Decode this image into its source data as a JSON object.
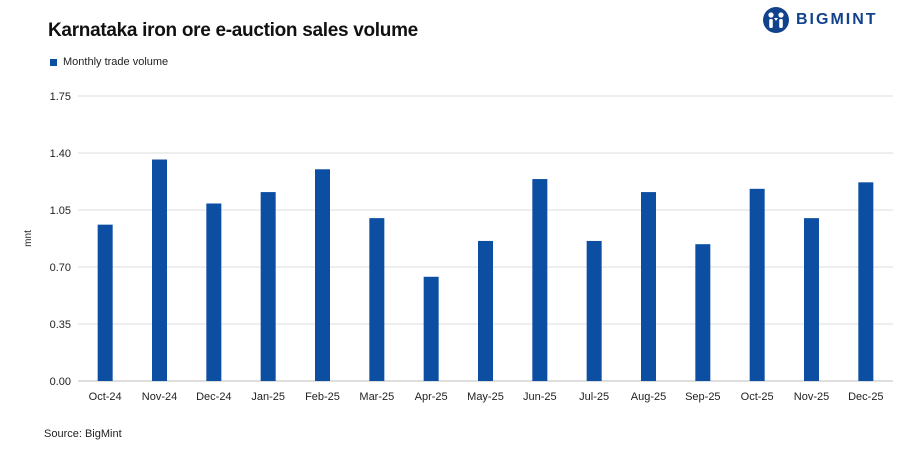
{
  "brand": {
    "name": "BIGMINT",
    "color": "#13428d",
    "icon": "bigmint-logo-icon"
  },
  "source": "Source: BigMint",
  "chart_data": {
    "type": "bar",
    "title": "Karnataka iron ore e-auction sales volume",
    "xlabel": "",
    "ylabel": "mnt",
    "ylim": [
      0,
      1.75
    ],
    "yticks": [
      "0.00",
      "0.35",
      "0.70",
      "1.05",
      "1.40",
      "1.75"
    ],
    "grid": true,
    "legend_position": "top-left",
    "bar_color": "#0b4ea2",
    "categories": [
      "Oct-24",
      "Nov-24",
      "Dec-24",
      "Jan-25",
      "Feb-25",
      "Mar-25",
      "Apr-25",
      "May-25",
      "Jun-25",
      "Jul-25",
      "Aug-25",
      "Sep-25",
      "Oct-25",
      "Nov-25",
      "Dec-25"
    ],
    "series": [
      {
        "name": "Monthly trade volume",
        "values": [
          0.96,
          1.36,
          1.09,
          1.16,
          1.3,
          1.0,
          0.64,
          0.86,
          1.24,
          0.86,
          1.16,
          0.84,
          1.18,
          1.0,
          1.22
        ]
      }
    ]
  }
}
